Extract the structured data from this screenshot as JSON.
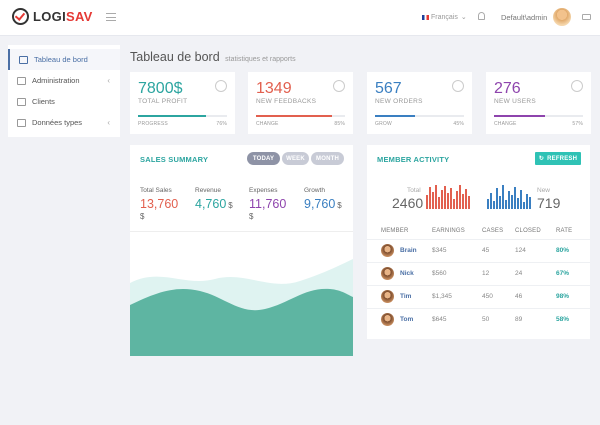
{
  "brand": {
    "part1": "LOGI",
    "part2": "SAV",
    "accent": "#e53935"
  },
  "topbar": {
    "language": "Français",
    "language_chevron": "⌄",
    "username": "Default\\admin",
    "icons": [
      "menu-icon",
      "bell-icon",
      "chat-icon"
    ]
  },
  "sidebar": {
    "items": [
      {
        "label": "Tableau de bord",
        "icon": "home-icon",
        "active": true,
        "chevron": ""
      },
      {
        "label": "Administration",
        "icon": "wrench-icon",
        "active": false,
        "chevron": "‹"
      },
      {
        "label": "Clients",
        "icon": "user-icon",
        "active": false,
        "chevron": ""
      },
      {
        "label": "Données types",
        "icon": "tag-icon",
        "active": false,
        "chevron": "‹"
      }
    ]
  },
  "page": {
    "title": "Tableau de bord",
    "subtitle": "statistiques et rapports"
  },
  "stats": [
    {
      "value": "7800$",
      "label": "TOTAL PROFIT",
      "foot": "PROGRESS",
      "pct": "76%",
      "progress": 0.76,
      "color": "#2ca5a0",
      "icon": "pie-chart-icon"
    },
    {
      "value": "1349",
      "label": "NEW FEEDBACKS",
      "foot": "CHANGE",
      "pct": "85%",
      "progress": 0.85,
      "color": "#e2604f",
      "icon": "thumbs-up-icon"
    },
    {
      "value": "567",
      "label": "NEW ORDERS",
      "foot": "GROW",
      "pct": "45%",
      "progress": 0.45,
      "color": "#3a7fc1",
      "icon": "cart-icon"
    },
    {
      "value": "276",
      "label": "NEW USERS",
      "foot": "CHANGE",
      "pct": "57%",
      "progress": 0.57,
      "color": "#8e44ad",
      "icon": "user-icon"
    }
  ],
  "sales": {
    "title": "SALES SUMMARY",
    "tabs": [
      {
        "label": "TODAY",
        "active": true
      },
      {
        "label": "WEEK",
        "active": false
      },
      {
        "label": "MONTH",
        "active": false
      }
    ],
    "items": [
      {
        "label": "Total Sales",
        "value": "13,760",
        "unit": "$",
        "color": "#e2604f"
      },
      {
        "label": "Revenue",
        "value": "4,760",
        "unit": "$",
        "color": "#2ca5a0"
      },
      {
        "label": "Expenses",
        "value": "11,760",
        "unit": "$",
        "color": "#8e44ad"
      },
      {
        "label": "Growth",
        "value": "9,760",
        "unit": "$",
        "color": "#3a7fc1"
      }
    ]
  },
  "member": {
    "title": "MEMBER ACTIVITY",
    "refresh": "REFRESH",
    "total_label": "Total",
    "total_value": "2460",
    "new_label": "New",
    "new_value": "719",
    "headers": [
      "MEMBER",
      "EARNINGS",
      "CASES",
      "CLOSED",
      "RATE"
    ],
    "rows": [
      {
        "name": "Brain",
        "earnings": "$345",
        "cases": "45",
        "closed": "124",
        "rate": "80%"
      },
      {
        "name": "Nick",
        "earnings": "$560",
        "cases": "12",
        "closed": "24",
        "rate": "67%"
      },
      {
        "name": "Tim",
        "earnings": "$1,345",
        "cases": "450",
        "closed": "46",
        "rate": "98%"
      },
      {
        "name": "Tom",
        "earnings": "$645",
        "cases": "50",
        "closed": "89",
        "rate": "58%"
      }
    ],
    "spark_total_color": "#e2604f",
    "spark_new_color": "#3a7fc1"
  }
}
